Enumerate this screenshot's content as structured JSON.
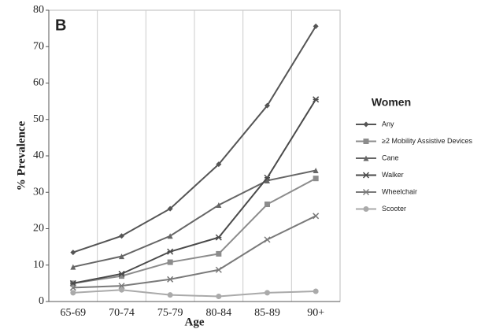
{
  "chart_data": {
    "type": "line",
    "panel_label": "B",
    "x_label": "Age",
    "y_label": "% Prevalence",
    "legend_title": "Women",
    "categories": [
      "65-69",
      "70-74",
      "75-79",
      "80-84",
      "85-89",
      "90+"
    ],
    "ylim": [
      0,
      80
    ],
    "yticks": [
      0,
      10,
      20,
      30,
      40,
      50,
      60,
      70,
      80
    ],
    "legend_position": "right",
    "series": [
      {
        "name": "Any",
        "color": "#555555",
        "marker": "diamond",
        "values": [
          13.5,
          18,
          25.5,
          37.7,
          53.8,
          75.6
        ]
      },
      {
        "name": "≥2 Mobility Assistive Devices",
        "color": "#8c8c8c",
        "marker": "square",
        "values": [
          5,
          7,
          10.8,
          13.1,
          26.7,
          33.8
        ]
      },
      {
        "name": "Cane",
        "color": "#666666",
        "marker": "triangle",
        "values": [
          9.5,
          12.4,
          18,
          26.5,
          33.2,
          36
        ]
      },
      {
        "name": "Walker",
        "color": "#4a4a4a",
        "marker": "star",
        "values": [
          5,
          7.6,
          13.7,
          17.6,
          34,
          55.5
        ]
      },
      {
        "name": "Wheelchair",
        "color": "#7a7a7a",
        "marker": "x",
        "values": [
          3.8,
          4.3,
          6.1,
          8.7,
          17,
          23.5
        ]
      },
      {
        "name": "Scooter",
        "color": "#aaaaaa",
        "marker": "circle",
        "values": [
          2.4,
          3.2,
          1.8,
          1.4,
          2.4,
          2.8
        ]
      }
    ]
  }
}
